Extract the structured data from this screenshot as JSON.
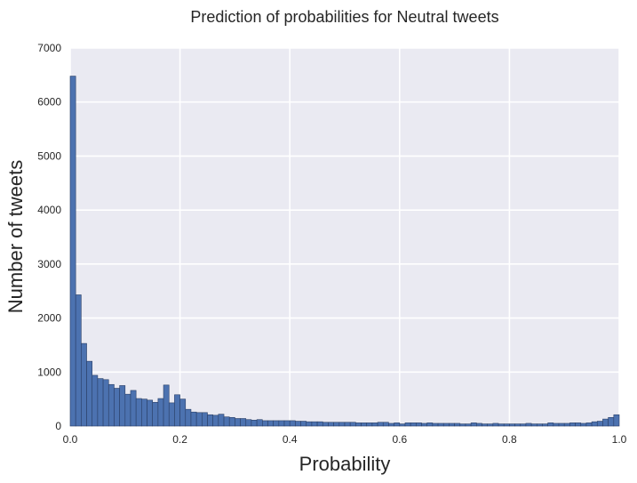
{
  "chart_data": {
    "type": "bar",
    "title": "Prediction of probabilities for Neutral tweets",
    "xlabel": "Probability",
    "ylabel": "Number of tweets",
    "xlim": [
      0.0,
      1.0
    ],
    "ylim": [
      0,
      7000
    ],
    "x_ticks": [
      "0.0",
      "0.2",
      "0.4",
      "0.6",
      "0.8",
      "1.0"
    ],
    "y_ticks": [
      "0",
      "1000",
      "2000",
      "3000",
      "4000",
      "5000",
      "6000",
      "7000"
    ],
    "bins": 100,
    "bin_range": [
      0.0,
      1.0
    ],
    "values": [
      6480,
      2430,
      1530,
      1200,
      940,
      880,
      860,
      770,
      700,
      750,
      590,
      660,
      510,
      500,
      480,
      440,
      510,
      760,
      430,
      580,
      500,
      310,
      260,
      250,
      250,
      210,
      200,
      220,
      170,
      160,
      140,
      140,
      120,
      110,
      120,
      100,
      100,
      100,
      100,
      100,
      100,
      90,
      90,
      80,
      80,
      80,
      70,
      70,
      70,
      70,
      70,
      70,
      60,
      60,
      60,
      60,
      70,
      70,
      50,
      60,
      40,
      60,
      60,
      60,
      50,
      60,
      50,
      50,
      50,
      50,
      50,
      40,
      40,
      60,
      50,
      40,
      40,
      50,
      40,
      40,
      40,
      40,
      40,
      50,
      40,
      40,
      40,
      60,
      50,
      50,
      50,
      60,
      60,
      50,
      60,
      80,
      90,
      130,
      160,
      210
    ],
    "grid": true,
    "legend": "none",
    "colors": {
      "bar_fill": "#4c72b0",
      "bar_edge": "#2a3f66",
      "plot_background": "#eaeaf2",
      "grid": "#ffffff",
      "text": "#262626"
    }
  }
}
